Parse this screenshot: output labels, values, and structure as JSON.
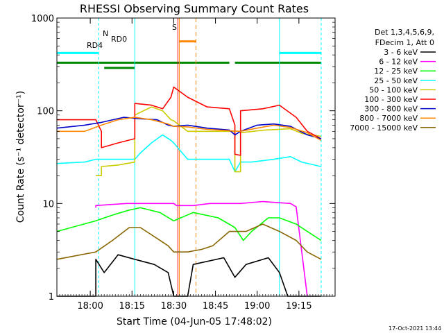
{
  "chart_data": {
    "type": "line",
    "title": "RHESSI Observing Summary Count Rates",
    "xlabel": "Start Time (04-Jun-05 17:48:02)",
    "ylabel": "Count Rate (s⁻¹ detector⁻¹)",
    "y_scale": "log",
    "ylim": [
      1,
      1000
    ],
    "xlim_minutes": [
      0,
      100
    ],
    "x_ticks": [
      {
        "t": 12,
        "label": "18:00"
      },
      {
        "t": 27,
        "label": "18:15"
      },
      {
        "t": 42,
        "label": "18:30"
      },
      {
        "t": 57,
        "label": "18:45"
      },
      {
        "t": 72,
        "label": "19:00"
      },
      {
        "t": 87,
        "label": "19:15"
      }
    ],
    "y_ticks": [
      {
        "v": 1,
        "label": "1"
      },
      {
        "v": 10,
        "label": "10"
      },
      {
        "v": 100,
        "label": "100"
      },
      {
        "v": 1000,
        "label": "1000"
      }
    ],
    "legend_header": [
      "Det 1,3,4,5,6,9,",
      "FDecim 1, Att 0"
    ],
    "series": [
      {
        "name": "3 - 6 keV",
        "color": "#000000",
        "points": [
          [
            0,
            1
          ],
          [
            14,
            1
          ],
          [
            14,
            2.5
          ],
          [
            17,
            1.8
          ],
          [
            22,
            2.8
          ],
          [
            28,
            2.5
          ],
          [
            35,
            2.2
          ],
          [
            40,
            1.8
          ],
          [
            42,
            1
          ],
          [
            47,
            1
          ],
          [
            49,
            2.2
          ],
          [
            60,
            2.6
          ],
          [
            64,
            1.6
          ],
          [
            68,
            2.2
          ],
          [
            76,
            2.6
          ],
          [
            80,
            1.8
          ],
          [
            83,
            1
          ],
          [
            95,
            1
          ]
        ]
      },
      {
        "name": "6 - 12 keV",
        "color": "#ff00ff",
        "points": [
          [
            14,
            9
          ],
          [
            14,
            9.5
          ],
          [
            25,
            10
          ],
          [
            42,
            10
          ],
          [
            43,
            9.5
          ],
          [
            49,
            9.5
          ],
          [
            55,
            10
          ],
          [
            65,
            10
          ],
          [
            66,
            10
          ],
          [
            74,
            10.5
          ],
          [
            84,
            10
          ],
          [
            86,
            9.2
          ],
          [
            90,
            1
          ]
        ]
      },
      {
        "name": "12 - 25 keV",
        "color": "#00ff00",
        "points": [
          [
            0,
            5
          ],
          [
            14,
            6.5
          ],
          [
            20,
            7.5
          ],
          [
            26,
            8.5
          ],
          [
            30,
            9
          ],
          [
            37,
            8
          ],
          [
            42,
            6.5
          ],
          [
            49,
            8
          ],
          [
            58,
            7
          ],
          [
            64,
            5.5
          ],
          [
            67,
            4
          ],
          [
            70,
            5
          ],
          [
            76,
            7
          ],
          [
            80,
            7
          ],
          [
            86,
            6
          ],
          [
            90,
            5
          ],
          [
            95,
            4
          ]
        ]
      },
      {
        "name": "25 - 50 keV",
        "color": "#00ffff",
        "points": [
          [
            0,
            27
          ],
          [
            10,
            28
          ],
          [
            14,
            30
          ],
          [
            22,
            30
          ],
          [
            28,
            30
          ],
          [
            30,
            35
          ],
          [
            34,
            45
          ],
          [
            38,
            55
          ],
          [
            41,
            48
          ],
          [
            42,
            45
          ],
          [
            47,
            30
          ],
          [
            54,
            30
          ],
          [
            62,
            30
          ],
          [
            64,
            22
          ],
          [
            66,
            28
          ],
          [
            70,
            28
          ],
          [
            78,
            30
          ],
          [
            84,
            32
          ],
          [
            88,
            28
          ],
          [
            95,
            25
          ]
        ]
      },
      {
        "name": "50 - 100 keV",
        "color": "#cccc00",
        "points": [
          [
            14,
            20
          ],
          [
            16,
            20
          ],
          [
            16,
            25
          ],
          [
            22,
            26
          ],
          [
            28,
            28
          ],
          [
            28,
            90
          ],
          [
            34,
            110
          ],
          [
            38,
            100
          ],
          [
            41,
            80
          ],
          [
            42,
            78
          ],
          [
            47,
            60
          ],
          [
            54,
            60
          ],
          [
            64,
            60
          ],
          [
            64,
            22
          ],
          [
            66,
            22
          ],
          [
            66,
            58
          ],
          [
            75,
            62
          ],
          [
            84,
            64
          ],
          [
            88,
            57
          ],
          [
            95,
            53
          ]
        ]
      },
      {
        "name": "100 - 300 keV",
        "color": "#ff0000",
        "points": [
          [
            0,
            80
          ],
          [
            10,
            80
          ],
          [
            14,
            80
          ],
          [
            16,
            60
          ],
          [
            16,
            40
          ],
          [
            22,
            45
          ],
          [
            28,
            50
          ],
          [
            28,
            120
          ],
          [
            34,
            115
          ],
          [
            38,
            105
          ],
          [
            41,
            140
          ],
          [
            42,
            180
          ],
          [
            47,
            140
          ],
          [
            54,
            110
          ],
          [
            62,
            105
          ],
          [
            64,
            70
          ],
          [
            64,
            34
          ],
          [
            66,
            33
          ],
          [
            66,
            100
          ],
          [
            74,
            105
          ],
          [
            80,
            115
          ],
          [
            86,
            85
          ],
          [
            90,
            60
          ],
          [
            95,
            50
          ]
        ]
      },
      {
        "name": "300 - 800 keV",
        "color": "#0000cc",
        "points": [
          [
            0,
            65
          ],
          [
            10,
            70
          ],
          [
            16,
            75
          ],
          [
            24,
            85
          ],
          [
            30,
            82
          ],
          [
            36,
            80
          ],
          [
            40,
            70
          ],
          [
            42,
            68
          ],
          [
            47,
            70
          ],
          [
            54,
            65
          ],
          [
            62,
            62
          ],
          [
            64,
            55
          ],
          [
            66,
            60
          ],
          [
            72,
            70
          ],
          [
            78,
            72
          ],
          [
            84,
            68
          ],
          [
            90,
            55
          ],
          [
            95,
            50
          ]
        ]
      },
      {
        "name": "800 - 7000 keV",
        "color": "#ff8800",
        "points": [
          [
            0,
            60
          ],
          [
            10,
            60
          ],
          [
            16,
            70
          ],
          [
            22,
            80
          ],
          [
            28,
            85
          ],
          [
            34,
            80
          ],
          [
            40,
            72
          ],
          [
            42,
            68
          ],
          [
            47,
            67
          ],
          [
            54,
            63
          ],
          [
            62,
            61
          ],
          [
            66,
            60
          ],
          [
            72,
            65
          ],
          [
            78,
            70
          ],
          [
            84,
            66
          ],
          [
            90,
            58
          ],
          [
            95,
            48
          ]
        ]
      },
      {
        "name": "7000 - 15000 keV",
        "color": "#886600",
        "points": [
          [
            0,
            2.5
          ],
          [
            14,
            3
          ],
          [
            20,
            4
          ],
          [
            26,
            5.5
          ],
          [
            30,
            5.5
          ],
          [
            36,
            4.2
          ],
          [
            40,
            3.5
          ],
          [
            42,
            3
          ],
          [
            47,
            3
          ],
          [
            52,
            3.2
          ],
          [
            56,
            3.5
          ],
          [
            62,
            5
          ],
          [
            68,
            5
          ],
          [
            74,
            6
          ],
          [
            80,
            5
          ],
          [
            86,
            4
          ],
          [
            90,
            3
          ],
          [
            95,
            2.5
          ]
        ]
      }
    ],
    "annotations": [
      "N",
      "RD0",
      "RD4",
      "S"
    ],
    "timestamp": "17-Oct-2021 13:44"
  }
}
